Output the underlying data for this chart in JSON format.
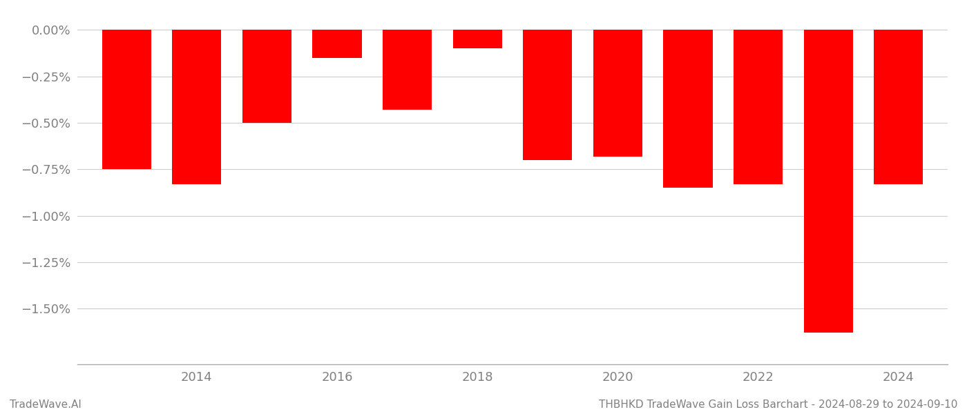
{
  "years": [
    2013,
    2014,
    2015,
    2016,
    2017,
    2018,
    2019,
    2020,
    2021,
    2022,
    2023,
    2024
  ],
  "values": [
    -0.0075,
    -0.0083,
    -0.005,
    -0.0015,
    -0.0043,
    -0.001,
    -0.007,
    -0.0068,
    -0.0085,
    -0.0083,
    -0.0163,
    -0.0083
  ],
  "bar_color": "#ff0000",
  "background_color": "#ffffff",
  "grid_color": "#cccccc",
  "axis_label_color": "#808080",
  "ylim": [
    -0.018,
    0.0005
  ],
  "yticks": [
    0.0,
    -0.0025,
    -0.005,
    -0.0075,
    -0.01,
    -0.0125,
    -0.015
  ],
  "xtick_years": [
    2014,
    2016,
    2018,
    2020,
    2022,
    2024
  ],
  "footer_left": "TradeWave.AI",
  "footer_right": "THBHKD TradeWave Gain Loss Barchart - 2024-08-29 to 2024-09-10",
  "bar_width": 0.7
}
